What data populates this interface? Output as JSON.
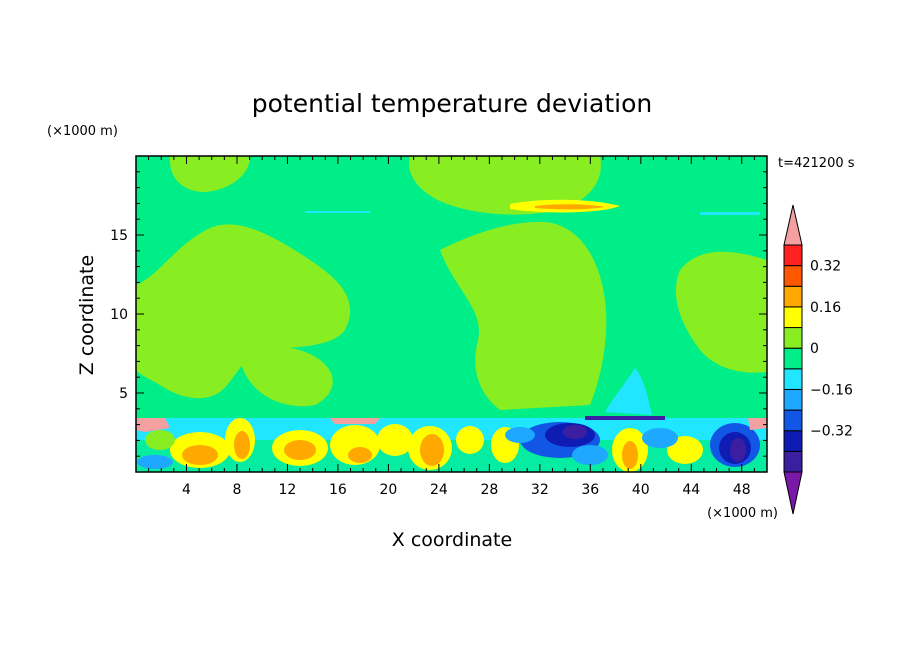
{
  "chart_data": {
    "type": "heatmap",
    "title": "potential temperature deviation",
    "xlabel": "X coordinate",
    "ylabel": "Z coordinate",
    "x_unit": "(×1000 m)",
    "y_unit": "(×1000 m)",
    "time_label": "t=421200 s",
    "xlim": [
      0,
      50
    ],
    "ylim": [
      0,
      20
    ],
    "x_ticks": [
      4,
      8,
      12,
      16,
      20,
      24,
      28,
      32,
      36,
      40,
      44,
      48
    ],
    "y_ticks": [
      5,
      10,
      15
    ],
    "colorbar": {
      "levels": [
        -0.48,
        -0.4,
        -0.32,
        -0.24,
        -0.16,
        -0.08,
        0,
        0.08,
        0.16,
        0.24,
        0.32,
        0.4
      ],
      "labeled": [
        0.32,
        0.16,
        0,
        -0.16,
        -0.32
      ],
      "colors": [
        "#7a18a8",
        "#3c1ea0",
        "#0f1cb4",
        "#1256e6",
        "#1ea8ff",
        "#20e6ff",
        "#00ee88",
        "#88ee22",
        "#ffff00",
        "#ffa800",
        "#ff5800",
        "#ff2020",
        "#f5a0a0"
      ]
    },
    "background_value_upper": 0.04,
    "background_value_lower": -0.04,
    "features": [
      {
        "desc": "warm (0 to 0.08) region",
        "x": [
          0,
          50
        ],
        "z": [
          3.5,
          20
        ]
      },
      {
        "desc": "cool surface layer with alternating warm/cool cells",
        "x": [
          0,
          50
        ],
        "z": [
          0,
          3.5
        ]
      },
      {
        "desc": "strong cool anomaly",
        "x": [
          31,
          40
        ],
        "z": [
          1.5,
          3.5
        ],
        "value": -0.36
      },
      {
        "desc": "strong cool anomaly",
        "x": [
          45,
          49
        ],
        "z": [
          0.5,
          3.2
        ],
        "value": -0.4
      },
      {
        "desc": "warm thin layer",
        "x": [
          29,
          40
        ],
        "z": [
          16.8,
          17.2
        ],
        "value": 0.16
      }
    ]
  }
}
